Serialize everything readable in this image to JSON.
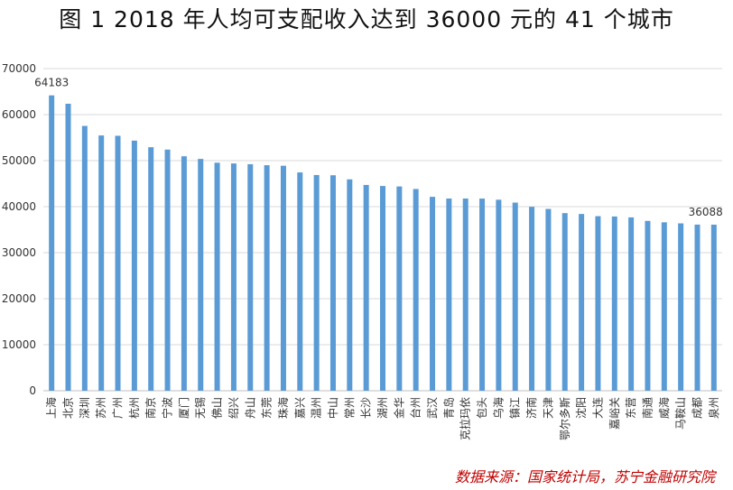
{
  "header": {
    "title": "图 1   2018 年人均可支配收入达到 36000 元的 41 个城市"
  },
  "footer": {
    "source": "数据来源：国家统计局，苏宁金融研究院"
  },
  "colors": {
    "bar": "#5b9bd5",
    "grid": "#d9d9d9",
    "source_text": "#c00000"
  },
  "chart_data": {
    "type": "bar",
    "ylim": [
      0,
      70000
    ],
    "yticks": [
      0,
      10000,
      20000,
      30000,
      40000,
      50000,
      60000,
      70000
    ],
    "grid": true,
    "categories": [
      "上海",
      "北京",
      "深圳",
      "苏州",
      "广州",
      "杭州",
      "南京",
      "宁波",
      "厦门",
      "无锡",
      "佛山",
      "绍兴",
      "舟山",
      "东莞",
      "珠海",
      "嘉兴",
      "温州",
      "中山",
      "常州",
      "长沙",
      "湖州",
      "金华",
      "台州",
      "武汉",
      "青岛",
      "克拉玛依",
      "包头",
      "乌海",
      "镇江",
      "济南",
      "天津",
      "鄂尔多斯",
      "沈阳",
      "大连",
      "嘉峪关",
      "东营",
      "南通",
      "威海",
      "马鞍山",
      "成都",
      "泉州"
    ],
    "values": [
      64183,
      62361,
      57544,
      55476,
      55400,
      54348,
      52916,
      52402,
      50948,
      50373,
      49547,
      49389,
      49223,
      49006,
      48891,
      47437,
      46877,
      46820,
      45933,
      44716,
      44489,
      44387,
      43839,
      42133,
      41767,
      41763,
      41754,
      41507,
      40878,
      39972,
      39506,
      38592,
      38404,
      37934,
      37869,
      37672,
      36907,
      36598,
      36368,
      36099,
      36088
    ],
    "data_labels": [
      {
        "index": 0,
        "text": "64183"
      },
      {
        "index": 40,
        "text": "36088"
      }
    ]
  }
}
